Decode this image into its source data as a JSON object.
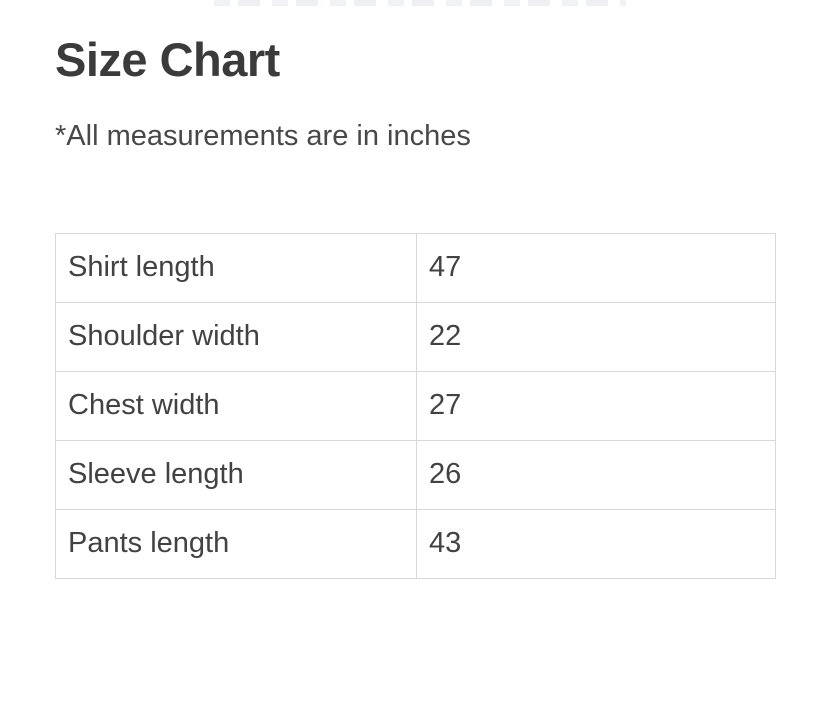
{
  "page": {
    "title": "Size Chart",
    "note": "*All measurements are in inches"
  },
  "size_table": {
    "unit": "inches",
    "rows": [
      {
        "label": "Shirt length",
        "value": "47"
      },
      {
        "label": "Shoulder width",
        "value": "22"
      },
      {
        "label": "Chest width",
        "value": "27"
      },
      {
        "label": "Sleeve length",
        "value": "26"
      },
      {
        "label": "Pants length",
        "value": "43"
      }
    ]
  },
  "colors": {
    "heading_text": "#3b3b3b",
    "body_text": "#424242",
    "table_border": "#d8d8d8",
    "background": "#ffffff"
  }
}
